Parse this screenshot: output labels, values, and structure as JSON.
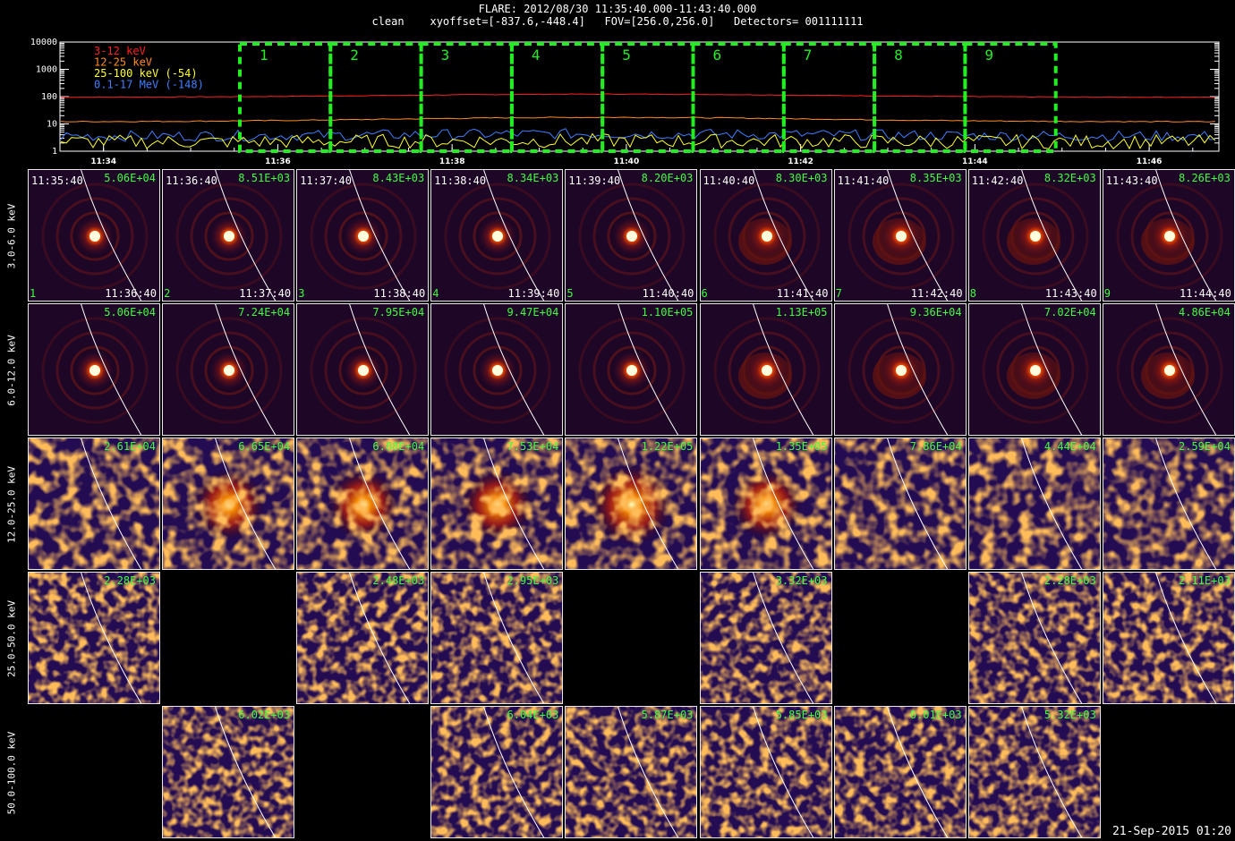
{
  "header": {
    "line1": "FLARE: 2012/08/30 11:35:40.000-11:43:40.000",
    "line2": "clean    xyoffset=[-837.6,-448.4]   FOV=[256.0,256.0]   Detectors= 001111111"
  },
  "lightcurve": {
    "yticks": [
      "10000",
      "1000",
      "100",
      "10",
      "1"
    ],
    "xticks": [
      "11:34",
      "11:36",
      "11:38",
      "11:40",
      "11:42",
      "11:44",
      "11:46"
    ],
    "legend": [
      {
        "label": "3-12 keV",
        "color": "#ff2020"
      },
      {
        "label": "12-25 keV",
        "color": "#ff8a20"
      },
      {
        "label": "25-100 keV (-54)",
        "color": "#ffff30"
      },
      {
        "label": "0.1-17 MeV (-148)",
        "color": "#3f7fff"
      }
    ],
    "interval_labels": [
      "1",
      "2",
      "3",
      "4",
      "5",
      "6",
      "7",
      "8",
      "9"
    ],
    "interval_color": "#22ee22"
  },
  "energy_bands": [
    "3.0-6.0 keV",
    "6.0-12.0 keV",
    "12.0-25.0 keV",
    "25.0-50.0 keV",
    "50.0-100.0 keV"
  ],
  "time_starts": [
    "11:35:40",
    "11:36:40",
    "11:37:40",
    "11:38:40",
    "11:39:40",
    "11:40:40",
    "11:41:40",
    "11:42:40",
    "11:43:40"
  ],
  "time_ends": [
    "11:36:40",
    "11:37:40",
    "11:38:40",
    "11:39:40",
    "11:40:40",
    "11:41:40",
    "11:42:40",
    "11:43:40",
    "11:44:40"
  ],
  "peaks": [
    [
      "5.06E+04",
      "8.51E+03",
      "8.43E+03",
      "8.34E+03",
      "8.20E+03",
      "8.30E+03",
      "8.35E+03",
      "8.32E+03",
      "8.26E+03"
    ],
    [
      "5.06E+04",
      "7.24E+04",
      "7.95E+04",
      "9.47E+04",
      "1.10E+05",
      "1.13E+05",
      "9.36E+04",
      "7.02E+04",
      "4.86E+04"
    ],
    [
      "2.61E+04",
      "6.65E+04",
      "6.88E+04",
      "7.53E+04",
      "1.22E+05",
      "1.35E+05",
      "7.86E+04",
      "4.44E+04",
      "2.59E+04"
    ],
    [
      "2.28E+03",
      "",
      "2.48E+03",
      "2.95E+03",
      "",
      "3.32E+03",
      "",
      "2.28E+03",
      "2.11E+03"
    ],
    [
      "",
      "6.02E+03",
      "",
      "6.04E+03",
      "5.87E+03",
      "5.85E+03",
      "6.01E+03",
      "5.32E+03",
      ""
    ]
  ],
  "footer": "21-Sep-2015 01:20"
}
